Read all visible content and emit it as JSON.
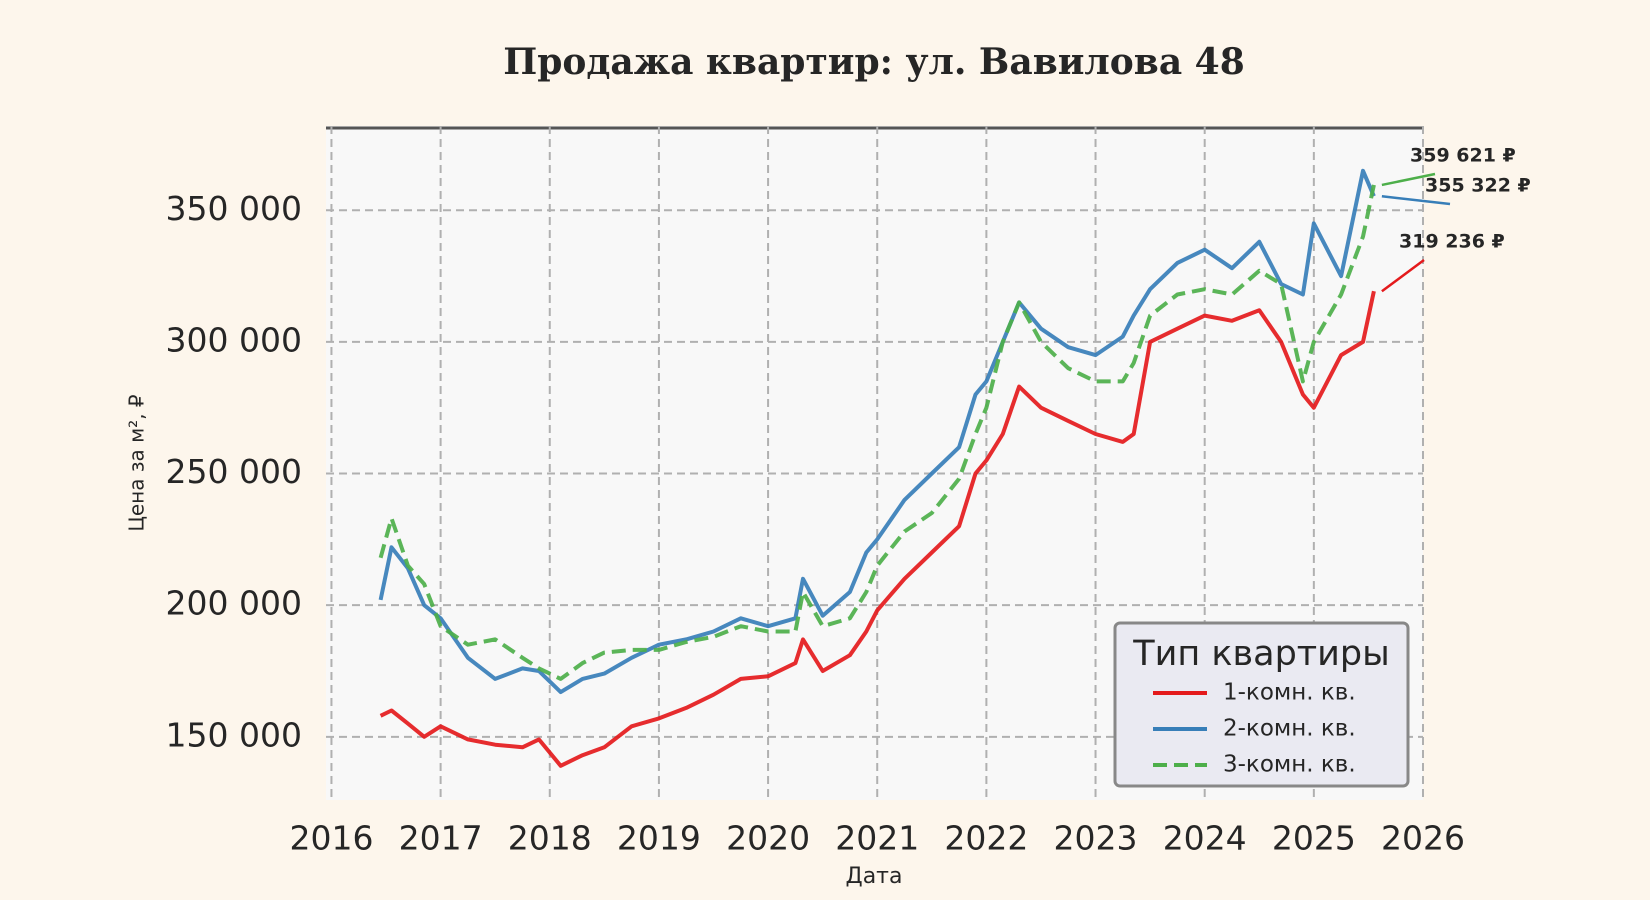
{
  "chart_data": {
    "type": "line",
    "title": "Продажа квартир: ул. Вавилова 48",
    "x_label": "Дата",
    "y_label": "Цена за м², ₽",
    "legend_title": "Тип квартиры",
    "legend": "lower right",
    "grid": true,
    "xlim": [
      2015.95,
      2026.0
    ],
    "xticks": [
      2016,
      2017,
      2018,
      2019,
      2020,
      2021,
      2022,
      2023,
      2024,
      2025,
      2026
    ],
    "ylim": [
      126000,
      382000
    ],
    "yticks": [
      {
        "value": 150000,
        "label": "150 000"
      },
      {
        "value": 200000,
        "label": "200 000"
      },
      {
        "value": 250000,
        "label": "250 000"
      },
      {
        "value": 300000,
        "label": "300 000"
      },
      {
        "value": 350000,
        "label": "350 000"
      }
    ],
    "x": [
      2016.45,
      2016.55,
      2016.7,
      2016.85,
      2017.0,
      2017.25,
      2017.5,
      2017.75,
      2017.9,
      2018.1,
      2018.3,
      2018.5,
      2018.75,
      2019.0,
      2019.25,
      2019.5,
      2019.75,
      2020.0,
      2020.25,
      2020.32,
      2020.5,
      2020.75,
      2020.9,
      2021.0,
      2021.25,
      2021.5,
      2021.75,
      2021.9,
      2022.0,
      2022.15,
      2022.3,
      2022.5,
      2022.75,
      2023.0,
      2023.25,
      2023.35,
      2023.5,
      2023.75,
      2024.0,
      2024.25,
      2024.5,
      2024.7,
      2024.9,
      2025.0,
      2025.25,
      2025.45,
      2025.55
    ],
    "series": [
      {
        "name": "1-комн. кв.",
        "color": "#e41a1c",
        "dash": false,
        "end_label": "319 236 ₽",
        "values": [
          158000,
          160000,
          155000,
          150000,
          154000,
          149000,
          147000,
          146000,
          149000,
          139000,
          143000,
          146000,
          154000,
          157000,
          161000,
          166000,
          172000,
          173000,
          178000,
          187000,
          175000,
          181000,
          190000,
          198000,
          210000,
          220000,
          230000,
          250000,
          255000,
          265000,
          283000,
          275000,
          270000,
          265000,
          262000,
          265000,
          300000,
          305000,
          310000,
          308000,
          312000,
          300000,
          280000,
          275000,
          295000,
          300000,
          319236
        ]
      },
      {
        "name": "2-комн. кв.",
        "color": "#377eb8",
        "dash": false,
        "end_label": "355 322 ₽",
        "values": [
          202000,
          222000,
          214000,
          200000,
          195000,
          180000,
          172000,
          176000,
          175000,
          167000,
          172000,
          174000,
          180000,
          185000,
          187000,
          190000,
          195000,
          192000,
          195000,
          210000,
          196000,
          205000,
          220000,
          225000,
          240000,
          250000,
          260000,
          280000,
          285000,
          300000,
          315000,
          305000,
          298000,
          295000,
          302000,
          310000,
          320000,
          330000,
          335000,
          328000,
          338000,
          322000,
          318000,
          345000,
          325000,
          365000,
          355322
        ]
      },
      {
        "name": "3-комн. кв.",
        "color": "#4daf4a",
        "dash": true,
        "end_label": "359 621 ₽",
        "values": [
          218000,
          233000,
          215000,
          208000,
          192000,
          185000,
          187000,
          180000,
          176000,
          172000,
          178000,
          182000,
          183000,
          183000,
          186000,
          188000,
          192000,
          190000,
          190000,
          205000,
          192000,
          195000,
          205000,
          215000,
          228000,
          235000,
          248000,
          265000,
          275000,
          300000,
          315000,
          300000,
          290000,
          285000,
          285000,
          292000,
          310000,
          318000,
          320000,
          318000,
          327000,
          322000,
          285000,
          300000,
          318000,
          340000,
          359621
        ]
      }
    ]
  }
}
